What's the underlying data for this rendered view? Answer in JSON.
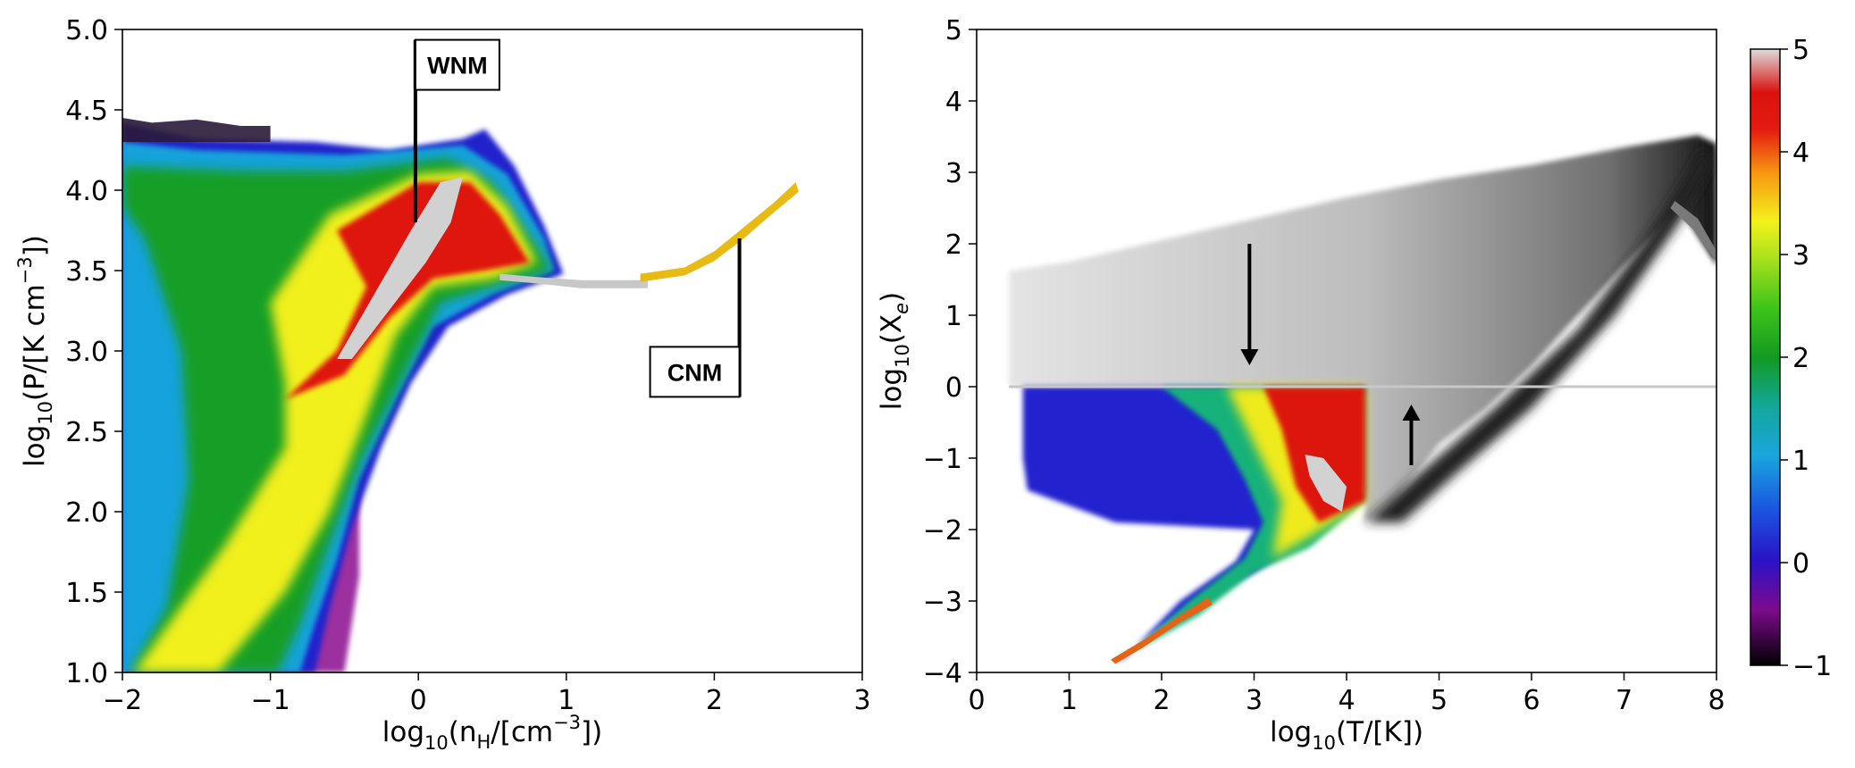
{
  "chart_data": [
    {
      "type": "heatmap",
      "title": "",
      "xlabel": {
        "base": "log",
        "sub": "10",
        "open": "(n",
        "nsub": "H",
        "close1": "/[cm",
        "exp": "−3",
        "close2": "])"
      },
      "ylabel": {
        "base": "log",
        "sub": "10",
        "open": "(P/[K cm",
        "exp": "−3",
        "close": "])"
      },
      "xlim": [
        -2,
        3
      ],
      "ylim": [
        1.0,
        5.0
      ],
      "xticks": [
        "−2",
        "−1",
        "0",
        "1",
        "2",
        "3"
      ],
      "yticks": [
        "1.0",
        "1.5",
        "2.0",
        "2.5",
        "3.0",
        "3.5",
        "4.0",
        "4.5",
        "5.0"
      ],
      "annotations": [
        {
          "text": "WNM",
          "x": -0.02,
          "y": 3.8,
          "label_at": [
            0.3,
            4.78
          ]
        },
        {
          "text": "CNM",
          "x": 2.17,
          "y": 3.7,
          "label_at": [
            1.68,
            2.87
          ]
        }
      ],
      "features": {
        "density_ridge": [
          [
            -1.95,
            1.0
          ],
          [
            -1.5,
            1.6
          ],
          [
            -1.0,
            2.4
          ],
          [
            -0.5,
            3.1
          ],
          [
            -0.2,
            3.5
          ],
          [
            0.1,
            3.9
          ],
          [
            0.3,
            4.0
          ]
        ],
        "wnm_peak": [
          0.1,
          3.85
        ],
        "plateau": {
          "x": [
            0.9,
            1.55
          ],
          "y": 3.42
        },
        "cnm_branch": [
          [
            1.55,
            3.45
          ],
          [
            1.9,
            3.55
          ],
          [
            2.2,
            3.75
          ],
          [
            2.55,
            4.03
          ]
        ],
        "top_cap": 4.4
      }
    },
    {
      "type": "heatmap",
      "title": "",
      "xlabel": {
        "base": "log",
        "sub": "10",
        "text": "(T/[K])"
      },
      "ylabel": {
        "base": "log",
        "sub": "10",
        "open": "(X",
        "sub2": "e",
        "close": ")"
      },
      "xlim": [
        0,
        8
      ],
      "ylim": [
        -4,
        5
      ],
      "xticks": [
        "0",
        "1",
        "2",
        "3",
        "4",
        "5",
        "6",
        "7",
        "8"
      ],
      "yticks": [
        "−4",
        "−3",
        "−2",
        "−1",
        "0",
        "1",
        "2",
        "3",
        "4",
        "5"
      ],
      "series": [
        {
          "colormap": "grayscale",
          "region": "upper envelope of log10(Xe) vs log10(T)"
        },
        {
          "colormap": "spectral",
          "region": "log10(Xe) < 0, T < 10^4.2 K"
        }
      ],
      "arrows": [
        {
          "direction": "down",
          "x": 2.95,
          "y_from": 2.0,
          "y_to": 0.3
        },
        {
          "direction": "up",
          "x": 4.7,
          "y_from": -1.1,
          "y_to": -0.25
        }
      ],
      "colorbar": {
        "ticks": [
          "−1",
          "0",
          "1",
          "2",
          "3",
          "4",
          "5"
        ],
        "range": [
          -1,
          5
        ],
        "colors": [
          "#000000",
          "#8a0c8e",
          "#1b1bcf",
          "#1aa1dc",
          "#119a2c",
          "#49d31b",
          "#f4f218",
          "#f67a10",
          "#dd1010",
          "#d8d8d8"
        ]
      }
    }
  ]
}
